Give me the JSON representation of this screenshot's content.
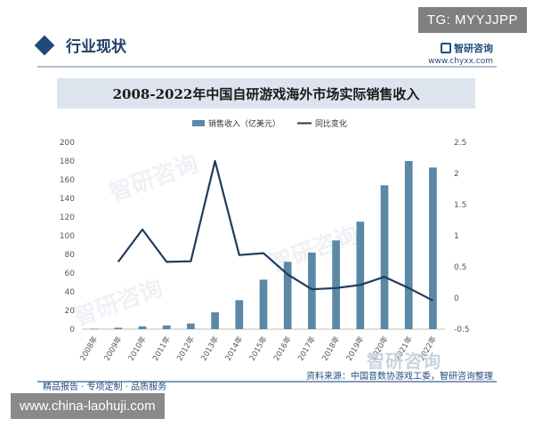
{
  "tg_label": "TG: MYYJJPP",
  "section_title": "行业现状",
  "brand": {
    "name": "智研咨询",
    "url": "www.chyxx.com"
  },
  "watermark_big": "智研咨询",
  "source_label": "资料来源：中国音数协游戏工委，智研咨询整理",
  "tagline": "精品报告 · 专项定制 · 品质服务",
  "url_box": "www.china-laohuji.com",
  "chart_data": {
    "type": "bar",
    "title": "2008-2022年中国自研游戏海外市场实际销售收入",
    "categories": [
      "2008年",
      "2009年",
      "2010年",
      "2011年",
      "2012年",
      "2013年",
      "2014年",
      "2015年",
      "2016年",
      "2017年",
      "2018年",
      "2019年",
      "2020年",
      "2021年",
      "2022年"
    ],
    "series": [
      {
        "name": "销售收入（亿美元）",
        "type": "bar",
        "axis": "left",
        "color": "#5b88a6",
        "values": [
          0.5,
          1.5,
          3.0,
          4.0,
          6.0,
          18.0,
          31.0,
          53.0,
          72.0,
          82.0,
          95.0,
          115.0,
          154.0,
          180.0,
          173.0
        ]
      },
      {
        "name": "同比变化",
        "type": "line",
        "axis": "right",
        "color": "#1f3b5c",
        "values": [
          null,
          0.58,
          1.1,
          0.58,
          0.59,
          2.2,
          0.69,
          0.72,
          0.38,
          0.14,
          0.16,
          0.21,
          0.34,
          0.16,
          -0.04
        ]
      }
    ],
    "y_left": {
      "min": 0,
      "max": 200,
      "ticks": [
        "0",
        "20",
        "40",
        "60",
        "80",
        "100",
        "120",
        "140",
        "160",
        "180",
        "200"
      ]
    },
    "y_right": {
      "min": -0.5,
      "max": 2.5,
      "ticks": [
        "-0.5",
        "0",
        "0.5",
        "1",
        "1.5",
        "2",
        "2.5"
      ]
    },
    "legend_position": "top-center",
    "grid": false
  }
}
